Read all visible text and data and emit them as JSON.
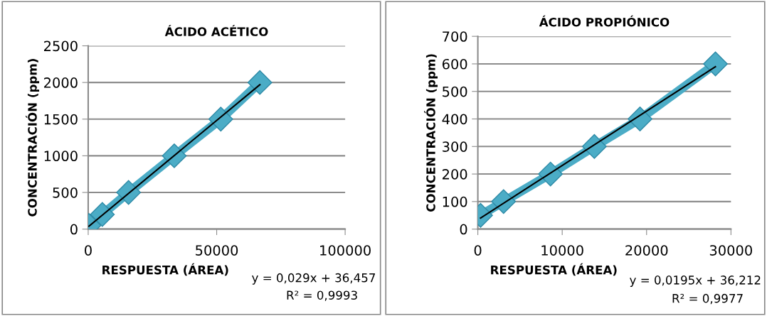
{
  "chart_data": [
    {
      "type": "line",
      "title": "ÁCIDO ACÉTICO",
      "xlabel": "RESPUESTA (ÁREA)",
      "ylabel": "CONCENTRACIÓN (ppm)",
      "annotations": [
        "y = 0,029x + 36,457",
        "R² = 0,9993"
      ],
      "grid": "y",
      "xlim": [
        0,
        100000
      ],
      "xticks": [
        0,
        50000,
        100000
      ],
      "ylim": [
        0,
        2500
      ],
      "yticks": [
        0,
        500,
        1000,
        1500,
        2000,
        2500
      ],
      "series": [
        {
          "color": "#4bacc6",
          "marker": "diamond",
          "x": [
            300,
            5500,
            15700,
            33500,
            51600,
            66800
          ],
          "values": [
            50,
            200,
            500,
            1000,
            1500,
            2000
          ]
        },
        {
          "color": "#000000",
          "marker": "none",
          "x": [
            300,
            66800
          ],
          "values": [
            40,
            1970
          ]
        }
      ]
    },
    {
      "type": "line",
      "title": "ÁCIDO PROPIÓNICO",
      "xlabel": "RESPUESTA (ÁREA)",
      "ylabel": "CONCENTRACIÓN (ppm)",
      "annotations": [
        "y = 0,0195x + 36,212",
        "R² = 0,9977"
      ],
      "grid": "y",
      "xlim": [
        0,
        30000
      ],
      "xticks": [
        0,
        10000,
        20000,
        30000
      ],
      "ylim": [
        0,
        700
      ],
      "yticks": [
        0,
        100,
        200,
        300,
        400,
        500,
        600,
        700
      ],
      "series": [
        {
          "color": "#4bacc6",
          "marker": "diamond",
          "x": [
            320,
            3050,
            8610,
            13810,
            19220,
            28160
          ],
          "values": [
            50,
            100,
            200,
            300,
            400,
            600
          ]
        },
        {
          "color": "#000000",
          "marker": "none",
          "x": [
            320,
            28160
          ],
          "values": [
            40,
            590
          ]
        }
      ]
    }
  ]
}
